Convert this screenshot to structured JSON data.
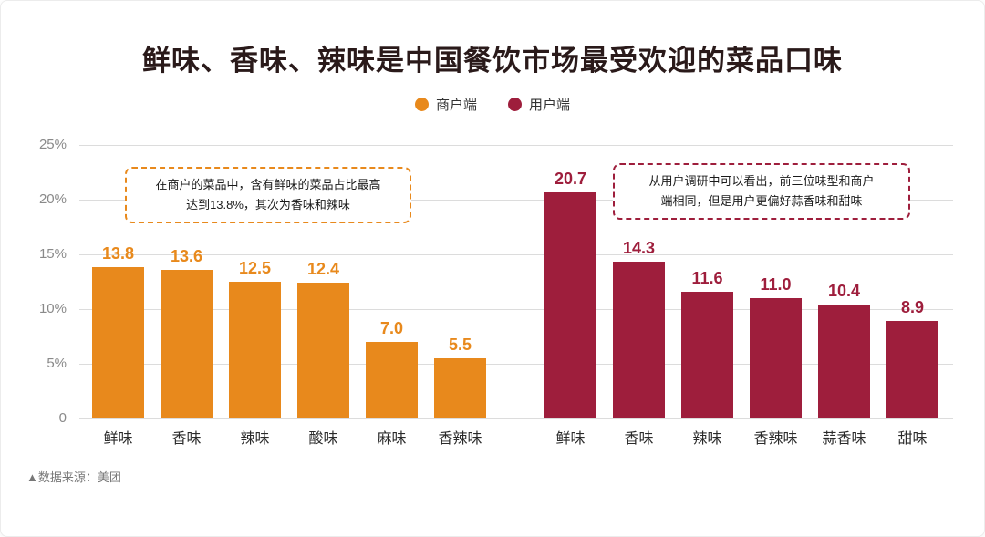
{
  "title": "鲜味、香味、辣味是中国餐饮市场最受欢迎的菜品口味",
  "legend": {
    "items": [
      {
        "label": "商户端",
        "color": "#E8891C"
      },
      {
        "label": "用户端",
        "color": "#9E1E3C"
      }
    ]
  },
  "annotations": {
    "merchant": "在商户的菜品中，含有鲜味的菜品占比最高\n达到13.8%，其次为香味和辣味",
    "user": "从用户调研中可以看出，前三位味型和商户\n端相同，但是用户更偏好蒜香味和甜味"
  },
  "source": "▲数据来源：美团",
  "chart_data": {
    "type": "bar",
    "title": "鲜味、香味、辣味是中国餐饮市场最受欢迎的菜品口味",
    "ylim": [
      0,
      25
    ],
    "y_ticks": [
      "25%",
      "20%",
      "15%",
      "10%",
      "5%",
      "0"
    ],
    "grid": true,
    "legend_position": "top",
    "series": [
      {
        "name": "商户端",
        "color": "#E8891C",
        "categories": [
          "鲜味",
          "香味",
          "辣味",
          "酸味",
          "麻味",
          "香辣味"
        ],
        "values": [
          13.8,
          13.6,
          12.5,
          12.4,
          7.0,
          5.5
        ]
      },
      {
        "name": "用户端",
        "color": "#9E1E3C",
        "categories": [
          "鲜味",
          "香味",
          "辣味",
          "香辣味",
          "蒜香味",
          "甜味"
        ],
        "values": [
          20.7,
          14.3,
          11.6,
          11.0,
          10.4,
          8.9
        ]
      }
    ]
  }
}
